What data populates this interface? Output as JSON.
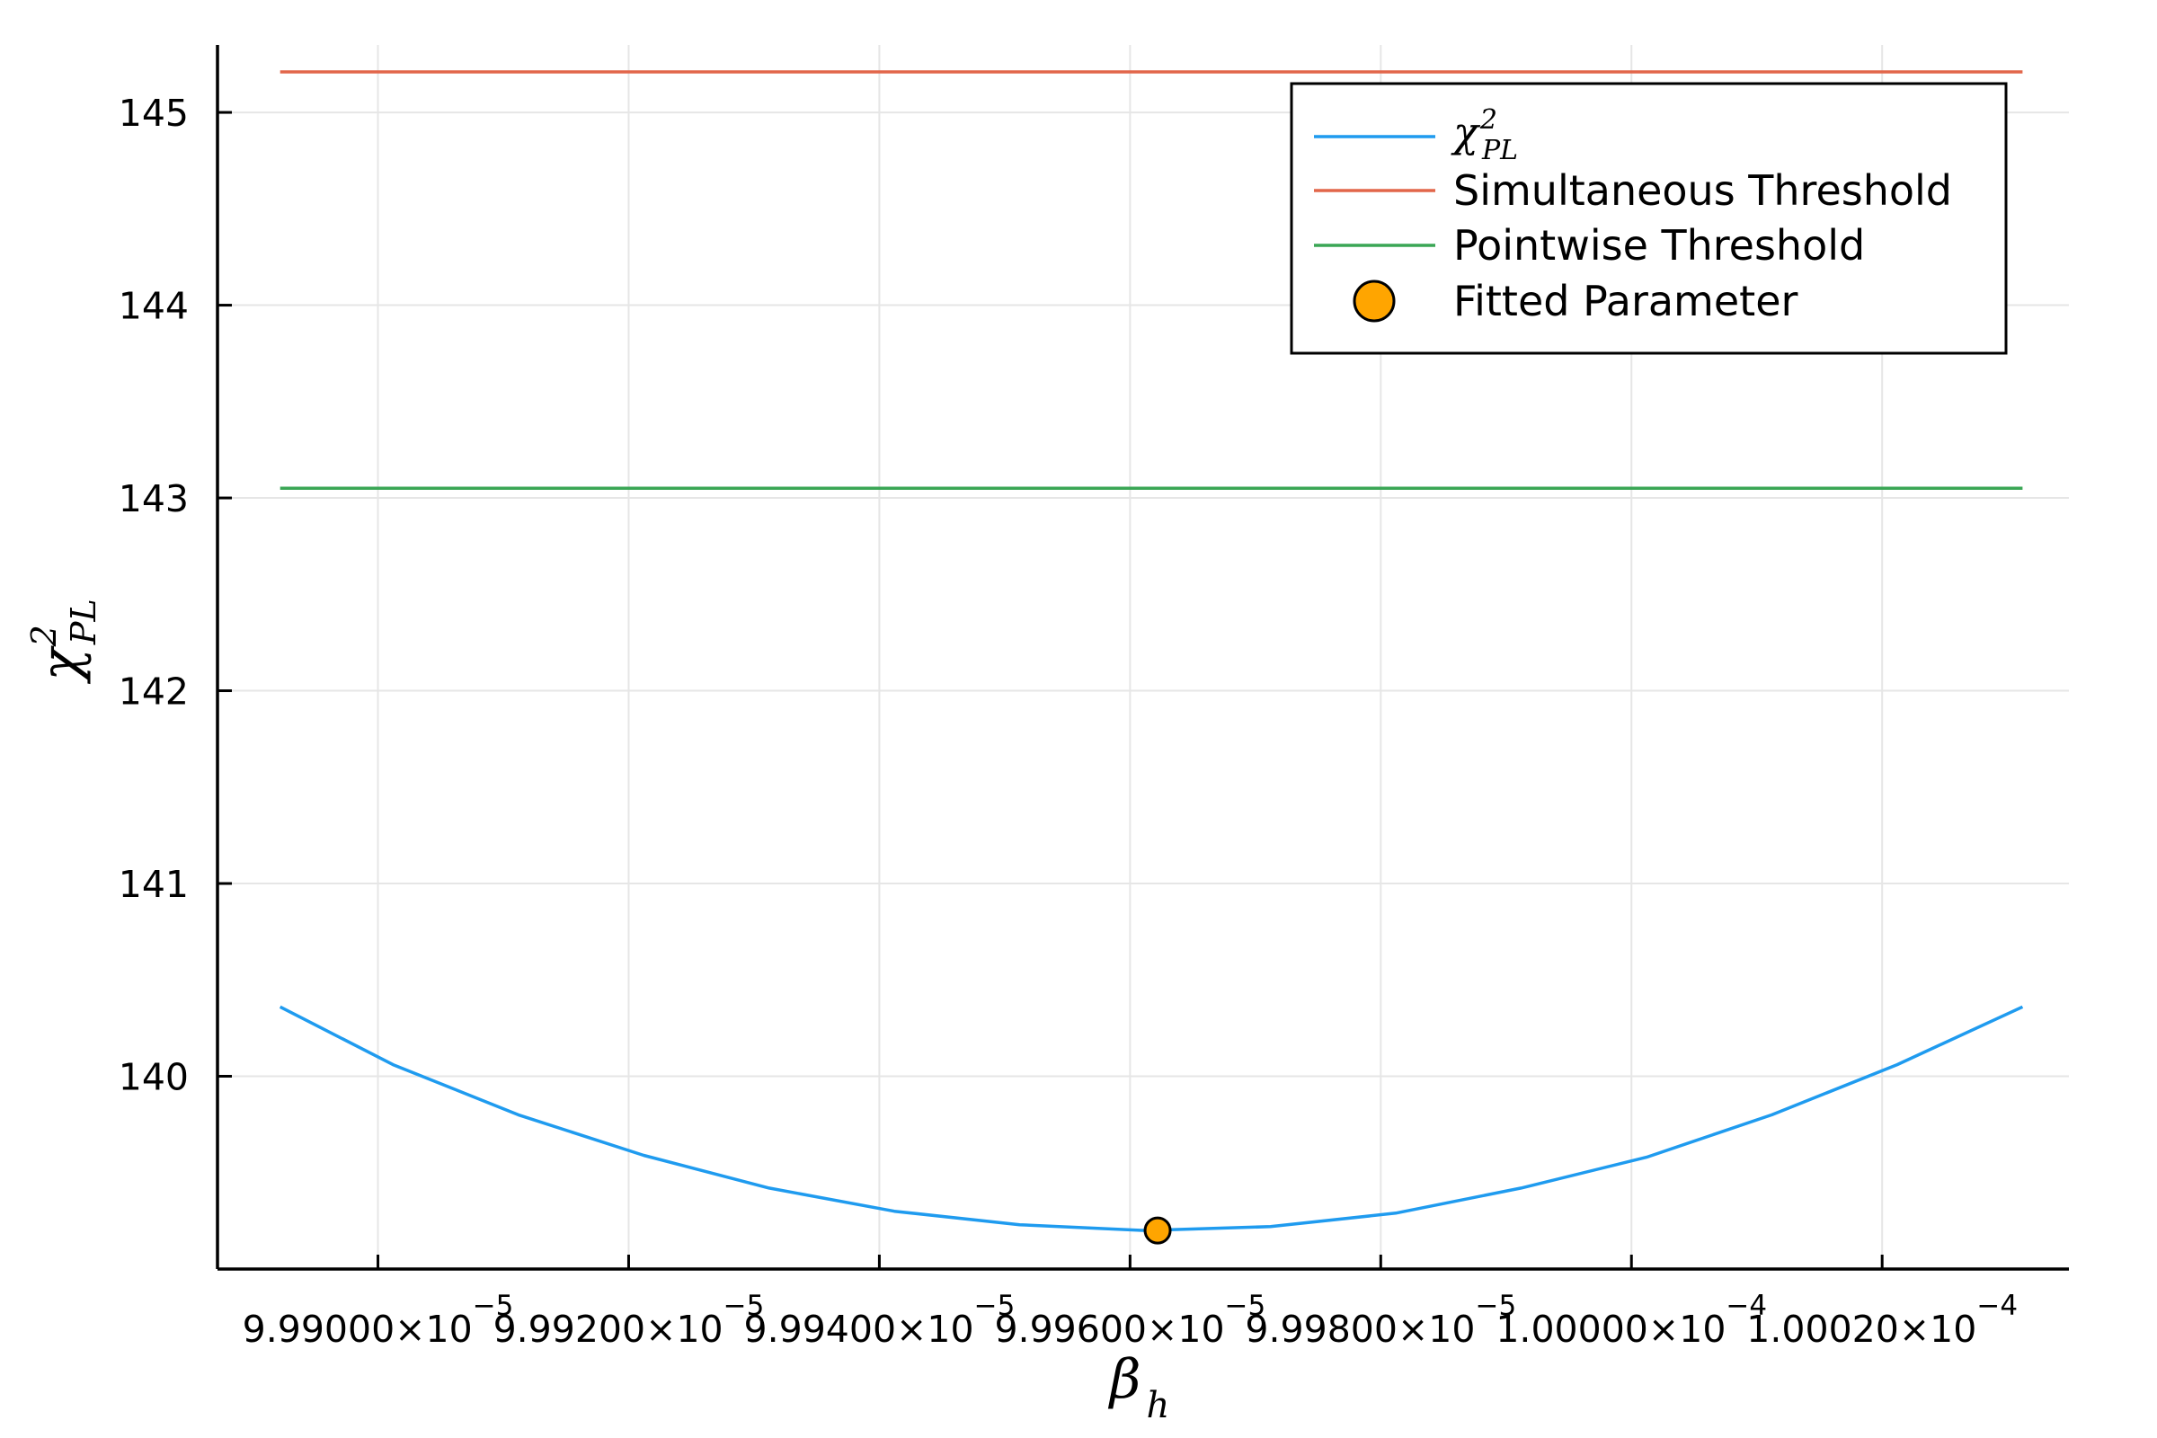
{
  "chart_data": {
    "type": "line",
    "xlabel": "β",
    "xlabel_sub": "h",
    "ylabel": "χ",
    "ylabel_sup": "2",
    "ylabel_sub": "PL",
    "xlim": [
      9.98872e-05,
      0.0001000349
    ],
    "ylim": [
      139.0,
      145.35
    ],
    "y_ticks": [
      {
        "value": 140,
        "label": "140"
      },
      {
        "value": 141,
        "label": "141"
      },
      {
        "value": 142,
        "label": "142"
      },
      {
        "value": 143,
        "label": "143"
      },
      {
        "value": 144,
        "label": "144"
      },
      {
        "value": 145,
        "label": "145"
      }
    ],
    "x_ticks": [
      {
        "value": 9.99e-05,
        "mantissa": "9.99000×10",
        "exponent": "−5"
      },
      {
        "value": 9.992e-05,
        "mantissa": "9.99200×10",
        "exponent": "−5"
      },
      {
        "value": 9.994e-05,
        "mantissa": "9.99400×10",
        "exponent": "−5"
      },
      {
        "value": 9.996e-05,
        "mantissa": "9.99600×10",
        "exponent": "−5"
      },
      {
        "value": 9.998e-05,
        "mantissa": "9.99800×10",
        "exponent": "−5"
      },
      {
        "value": 0.0001,
        "mantissa": "1.00000×10",
        "exponent": "−4"
      },
      {
        "value": 0.00010002,
        "mantissa": "1.00020×10",
        "exponent": "−4"
      }
    ],
    "grid": true,
    "legend_position": "top-right",
    "series": [
      {
        "name": "χ",
        "name_sup": "2",
        "name_sub": "PL",
        "color": "#1f9bef",
        "x": [
          9.98922e-05,
          9.99012e-05,
          9.99112e-05,
          9.99212e-05,
          9.99312e-05,
          9.99412e-05,
          9.99512e-05,
          9.99612e-05,
          9.99712e-05,
          9.99812e-05,
          9.99912e-05,
          0.0001000012,
          0.0001000112,
          0.0001000212,
          0.0001000312
        ],
        "y": [
          140.36,
          140.06,
          139.8,
          139.59,
          139.42,
          139.3,
          139.23,
          139.2,
          139.22,
          139.29,
          139.42,
          139.58,
          139.8,
          140.06,
          140.36
        ]
      },
      {
        "name": "Simultaneous Threshold",
        "color": "#e2664a",
        "x": [
          9.98922e-05,
          0.0001000312
        ],
        "y": [
          145.21,
          145.21
        ]
      },
      {
        "name": "Pointwise Threshold",
        "color": "#3aa655",
        "x": [
          9.98922e-05,
          0.0001000312
        ],
        "y": [
          143.05,
          143.05
        ]
      }
    ],
    "markers": [
      {
        "name": "Fitted Parameter",
        "color": "#ffa500",
        "x": 9.99622e-05,
        "y": 139.2
      }
    ]
  }
}
